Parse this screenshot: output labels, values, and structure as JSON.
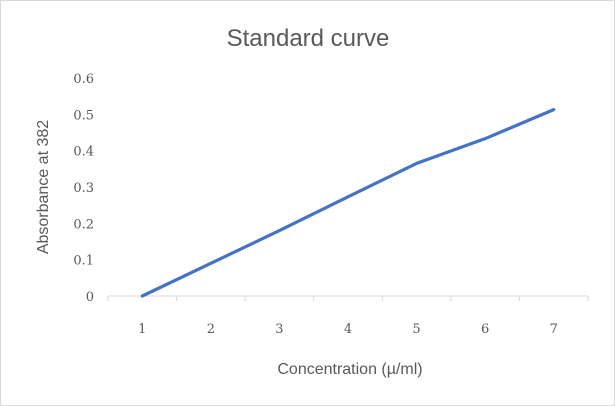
{
  "chart_data": {
    "type": "line",
    "title": "Standard curve",
    "xlabel": "Concentration (µ/ml)",
    "ylabel": "Absorbance at 382",
    "categories": [
      "1",
      "2",
      "3",
      "4",
      "5",
      "6",
      "7"
    ],
    "series": [
      {
        "values": [
          0,
          0.09,
          0.18,
          0.273,
          0.365,
          0.433,
          0.513
        ]
      }
    ],
    "ylim": [
      0,
      0.6
    ],
    "yticks": [
      "0",
      "0.1",
      "0.2",
      "0.3",
      "0.4",
      "0.5",
      "0.6"
    ],
    "grid": false,
    "legend": "none",
    "colors": {
      "series": "#4472c4",
      "text": "#595959",
      "axis": "#d9d9d9"
    }
  }
}
